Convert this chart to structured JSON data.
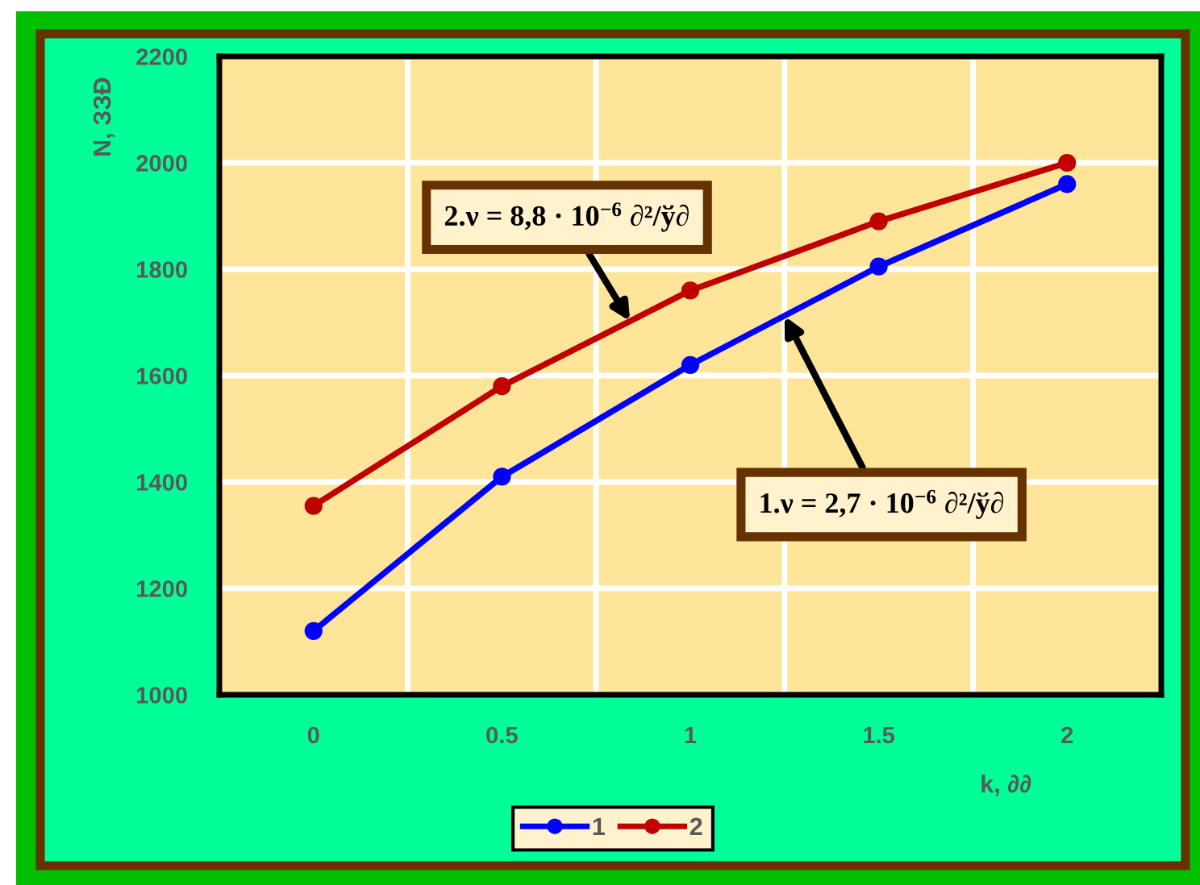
{
  "chart_data": {
    "type": "line",
    "xlabel": "k, ∂∂",
    "ylabel": "N, ЗЗÐ",
    "x": [
      0,
      0.5,
      1,
      1.5,
      2
    ],
    "series": [
      {
        "name": "1",
        "color": "#0000ff",
        "values": [
          1120,
          1410,
          1620,
          1805,
          1960
        ]
      },
      {
        "name": "2",
        "color": "#c00000",
        "values": [
          1355,
          1580,
          1760,
          1890,
          2000
        ]
      }
    ],
    "xlim": [
      -0.25,
      2.25
    ],
    "xticks": [
      0,
      0.5,
      1,
      1.5,
      2
    ],
    "ylim": [
      1000,
      2200
    ],
    "yticks": [
      1000,
      1200,
      1400,
      1600,
      1800,
      2000,
      2200
    ],
    "grid": "y",
    "legend": "bottom",
    "marker": "circle",
    "line_style": "solid",
    "ref_lines": [
      {
        "axis": "x",
        "value": 0.25,
        "color": "#ffffff"
      },
      {
        "axis": "x",
        "value": 0.75,
        "color": "#ffffff"
      },
      {
        "axis": "x",
        "value": 1.25,
        "color": "#ffffff"
      },
      {
        "axis": "x",
        "value": 1.75,
        "color": "#ffffff"
      }
    ],
    "annotations": [
      {
        "text": "2.ν = 8,8 · 10$^{−6}$ ∂²/ў∂",
        "x": 0.84,
        "y": 1702
      },
      {
        "text": "1.ν = 2,7 · 10$^{−6}$ ∂²/ў∂",
        "x": 1.25,
        "y": 1712
      }
    ]
  }
}
